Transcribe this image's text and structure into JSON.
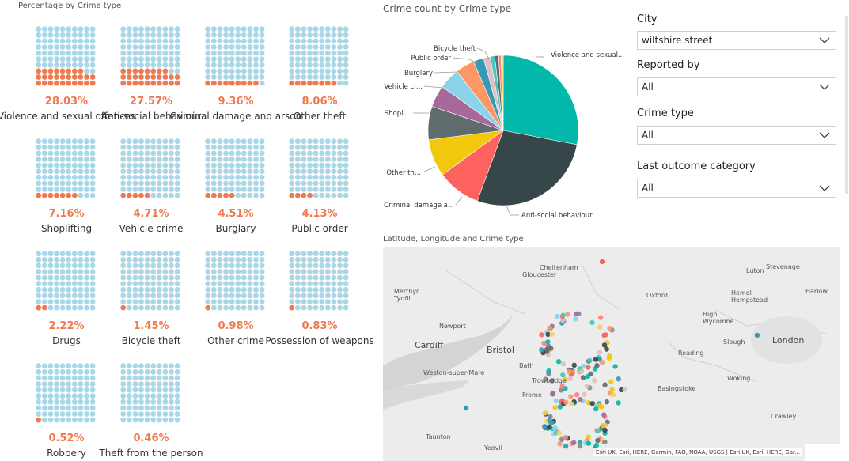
{
  "waffle_section": {
    "title": "Percentage by Crime type",
    "tiles": [
      {
        "pct_label": "28.03%",
        "category": "Violence and sexual offences",
        "value": 28.03
      },
      {
        "pct_label": "27.57%",
        "category": "Anti-social behaviour",
        "value": 27.57
      },
      {
        "pct_label": "9.36%",
        "category": "Criminal damage and arson",
        "value": 9.36
      },
      {
        "pct_label": "8.06%",
        "category": "Other theft",
        "value": 8.06
      },
      {
        "pct_label": "7.16%",
        "category": "Shoplifting",
        "value": 7.16
      },
      {
        "pct_label": "4.71%",
        "category": "Vehicle crime",
        "value": 4.71
      },
      {
        "pct_label": "4.51%",
        "category": "Burglary",
        "value": 4.51
      },
      {
        "pct_label": "4.13%",
        "category": "Public order",
        "value": 4.13
      },
      {
        "pct_label": "2.22%",
        "category": "Drugs",
        "value": 2.22
      },
      {
        "pct_label": "1.45%",
        "category": "Bicycle theft",
        "value": 1.45
      },
      {
        "pct_label": "0.98%",
        "category": "Other crime",
        "value": 0.98
      },
      {
        "pct_label": "0.83%",
        "category": "Possession of weapons",
        "value": 0.83
      },
      {
        "pct_label": "0.52%",
        "category": "Robbery",
        "value": 0.52
      },
      {
        "pct_label": "0.46%",
        "category": "Theft from the person",
        "value": 0.46
      }
    ],
    "colors": {
      "filled": "#f07a4f",
      "empty": "#a8d8e8",
      "pct_text": "#f07a4f"
    }
  },
  "pie_section": {
    "title": "Crime count by Crime type",
    "labels": {
      "violence": "Violence and sexual...",
      "antisocial": "Anti-social behaviour",
      "criminal": "Criminal damage a...",
      "other_theft": "Other th...",
      "shoplifting": "Shopli...",
      "vehicle": "Vehicle cr...",
      "burglary": "Burglary",
      "public_order": "Public order",
      "bicycle": "Bicycle theft"
    }
  },
  "chart_data": {
    "type": "pie",
    "title": "Crime count by Crime type",
    "slices": [
      {
        "name": "Violence and sexual offences",
        "value": 28.03,
        "color": "#01b8aa"
      },
      {
        "name": "Anti-social behaviour",
        "value": 27.57,
        "color": "#374649"
      },
      {
        "name": "Criminal damage and arson",
        "value": 9.36,
        "color": "#fd625e"
      },
      {
        "name": "Other theft",
        "value": 8.06,
        "color": "#f2c80f"
      },
      {
        "name": "Shoplifting",
        "value": 7.16,
        "color": "#5f6b6d"
      },
      {
        "name": "Vehicle crime",
        "value": 4.71,
        "color": "#a66999"
      },
      {
        "name": "Burglary",
        "value": 4.51,
        "color": "#8ad4eb"
      },
      {
        "name": "Public order",
        "value": 4.13,
        "color": "#fe9666"
      },
      {
        "name": "Drugs",
        "value": 2.22,
        "color": "#3599b8"
      },
      {
        "name": "Bicycle theft",
        "value": 1.45,
        "color": "#dfbfbf"
      },
      {
        "name": "Other crime",
        "value": 0.98,
        "color": "#4ac5bb"
      },
      {
        "name": "Possession of weapons",
        "value": 0.83,
        "color": "#5f6b6d"
      },
      {
        "name": "Robbery",
        "value": 0.52,
        "color": "#fb8281"
      },
      {
        "name": "Theft from the person",
        "value": 0.46,
        "color": "#f4d25a"
      }
    ]
  },
  "slicers": [
    {
      "label": "City",
      "value": "wiltshire street"
    },
    {
      "label": "Reported by",
      "value": "All"
    },
    {
      "label": "Crime type",
      "value": "All"
    },
    {
      "label": "Last outcome category",
      "value": "All"
    }
  ],
  "map_section": {
    "title": "Latitude, Longitude and Crime type",
    "places": {
      "cheltenham": "Cheltenham",
      "gloucester": "Gloucester",
      "luton": "Luton",
      "stevenage": "Stevenage",
      "merthyr": "Merthyr\nTydfil",
      "oxford": "Oxford",
      "harlow": "Harlow",
      "hemel": "Hemel\nHempstead",
      "high_wycombe": "High\nWycombe",
      "newport": "Newport",
      "cardiff": "Cardiff",
      "bristol": "Bristol",
      "slough": "Slough",
      "london": "London",
      "reading": "Reading",
      "weston": "Weston-super-Mare",
      "bath": "Bath",
      "trowbridge": "Trowbridge",
      "frome": "Frome",
      "basingstoke": "Basingstoke",
      "woking": "Woking",
      "crawley": "Crawley",
      "taunton": "Taunton",
      "yeovil": "Yeovil"
    },
    "attribution": "Esri UK, Esri, HERE, Garmin, FAO, NOAA, USGS | Esri UK, Esri, HERE, Gar..."
  }
}
